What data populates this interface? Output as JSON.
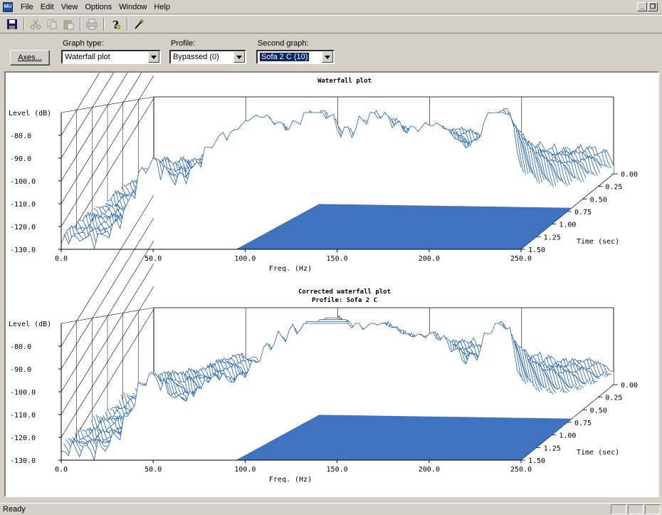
{
  "menu": {
    "app_icon_text": "MU",
    "items": [
      "File",
      "Edit",
      "View",
      "Options",
      "Window",
      "Help"
    ],
    "mdi_minimize": "_",
    "mdi_restore": "❐"
  },
  "toolbar": {
    "buttons": [
      "save-icon",
      "cut-icon",
      "copy-icon",
      "paste-icon",
      "print-icon",
      "help-icon",
      "wizard-icon"
    ]
  },
  "controls": {
    "axes_button": "Axes...",
    "graph_type_label": "Graph type:",
    "graph_type_value": "Waterfall plot",
    "profile_label": "Profile:",
    "profile_value": "Bypassed (0)",
    "second_graph_label": "Second graph:",
    "second_graph_value": "Sofa 2 C (10)"
  },
  "colors": {
    "line": "#1f5fb0",
    "fill": "#2a64b8"
  },
  "chart_data": [
    {
      "type": "area",
      "title": "Waterfall plot",
      "subtitle": "",
      "ylabel": "Level (dB)",
      "xlabel": "Freq. (Hz)",
      "zlabel": "Time (sec)",
      "ylim": [
        -130,
        -70
      ],
      "xlim": [
        0,
        250
      ],
      "y_ticks": [
        "-80.0",
        "-90.0",
        "-100.0",
        "-110.0",
        "-120.0",
        "-130.0"
      ],
      "x_ticks": [
        "0.0",
        "50.0",
        "100.0",
        "150.0",
        "200.0",
        "250.0"
      ],
      "z_ticks": [
        "0.00",
        "0.25",
        "0.50",
        "0.75",
        "1.00",
        "1.25",
        "1.50"
      ],
      "front_peaks": [
        {
          "freq": 48,
          "level": -100
        },
        {
          "freq": 78,
          "level": -104
        },
        {
          "freq": 110,
          "level": -76
        },
        {
          "freq": 140,
          "level": -89
        },
        {
          "freq": 168,
          "level": -80
        },
        {
          "freq": 205,
          "level": -79
        },
        {
          "freq": 240,
          "level": -75
        }
      ]
    },
    {
      "type": "area",
      "title": "Corrected waterfall plot",
      "subtitle": "Profile: Sofa 2 C",
      "ylabel": "Level (dB)",
      "xlabel": "Freq. (Hz)",
      "zlabel": "Time (sec)",
      "ylim": [
        -130,
        -70
      ],
      "xlim": [
        0,
        250
      ],
      "y_ticks": [
        "-80.0",
        "-90.0",
        "-100.0",
        "-110.0",
        "-120.0",
        "-130.0"
      ],
      "x_ticks": [
        "0.0",
        "50.0",
        "100.0",
        "150.0",
        "200.0",
        "250.0"
      ],
      "z_ticks": [
        "0.00",
        "0.25",
        "0.50",
        "0.75",
        "1.00",
        "1.25",
        "1.50"
      ],
      "front_peaks": [
        {
          "freq": 48,
          "level": -100
        },
        {
          "freq": 80,
          "level": -104
        },
        {
          "freq": 120,
          "level": -80
        },
        {
          "freq": 145,
          "level": -88
        },
        {
          "freq": 170,
          "level": -82
        },
        {
          "freq": 205,
          "level": -80
        },
        {
          "freq": 240,
          "level": -78
        }
      ]
    }
  ],
  "status": {
    "text": "Ready"
  }
}
